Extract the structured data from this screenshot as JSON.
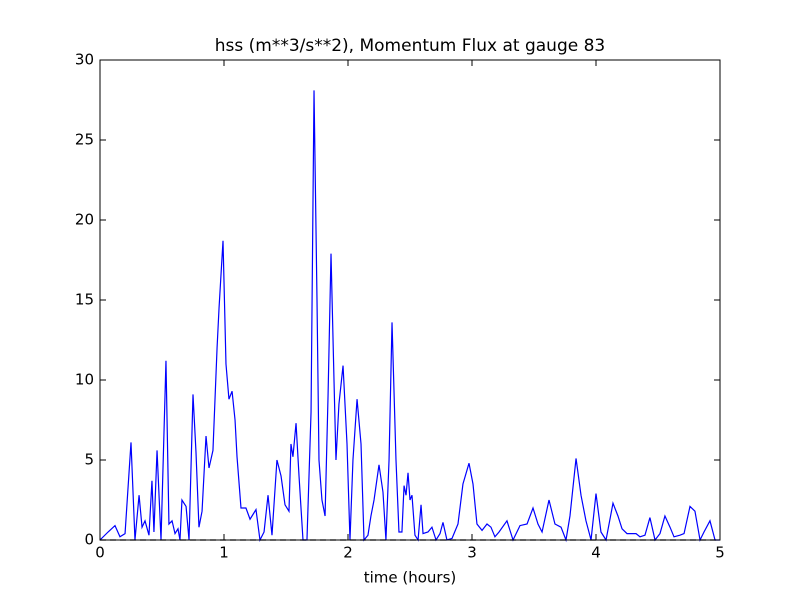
{
  "chart_data": {
    "type": "line",
    "title": "hss (m**3/s**2), Momentum Flux at gauge 83",
    "x_label": "time (hours)",
    "xlim": [
      0,
      5
    ],
    "xticks": [
      0,
      1,
      2,
      3,
      4,
      5
    ],
    "ylim": [
      0,
      30
    ],
    "yticks": [
      0,
      5,
      10,
      15,
      20,
      25,
      30
    ],
    "grid": false,
    "series": [
      {
        "color": "#0000ff",
        "dashed": false,
        "x": [
          0,
          0.065,
          0.121,
          0.161,
          0.202,
          0.25,
          0.282,
          0.315,
          0.339,
          0.363,
          0.395,
          0.419,
          0.435,
          0.46,
          0.492,
          0.532,
          0.556,
          0.581,
          0.605,
          0.629,
          0.645,
          0.661,
          0.694,
          0.718,
          0.75,
          0.774,
          0.798,
          0.823,
          0.855,
          0.879,
          0.911,
          0.944,
          0.96,
          0.992,
          1.016,
          1.04,
          1.065,
          1.089,
          1.105,
          1.137,
          1.177,
          1.21,
          1.258,
          1.29,
          1.323,
          1.355,
          1.387,
          1.427,
          1.46,
          1.492,
          1.524,
          1.54,
          1.556,
          1.581,
          1.605,
          1.637,
          1.669,
          1.702,
          1.726,
          1.75,
          1.766,
          1.79,
          1.815,
          1.839,
          1.863,
          1.887,
          1.903,
          1.927,
          1.96,
          1.992,
          2.016,
          2.04,
          2.073,
          2.105,
          2.129,
          2.161,
          2.185,
          2.21,
          2.25,
          2.282,
          2.306,
          2.331,
          2.355,
          2.387,
          2.411,
          2.435,
          2.452,
          2.468,
          2.484,
          2.5,
          2.516,
          2.54,
          2.565,
          2.589,
          2.605,
          2.645,
          2.677,
          2.71,
          2.742,
          2.766,
          2.798,
          2.839,
          2.887,
          2.927,
          2.976,
          3.008,
          3.04,
          3.081,
          3.121,
          3.153,
          3.185,
          3.218,
          3.282,
          3.331,
          3.387,
          3.444,
          3.492,
          3.532,
          3.565,
          3.621,
          3.669,
          3.718,
          3.758,
          3.79,
          3.839,
          3.879,
          3.919,
          3.96,
          4.0,
          4.04,
          4.081,
          4.137,
          4.177,
          4.21,
          4.25,
          4.323,
          4.355,
          4.395,
          4.435,
          4.476,
          4.516,
          4.556,
          4.597,
          4.629,
          4.677,
          4.71,
          4.758,
          4.798,
          4.839,
          4.871,
          4.919,
          4.96,
          5
        ],
        "values": [
          0,
          0.5,
          0.9,
          0.2,
          0.4,
          6.1,
          0,
          2.8,
          0.8,
          1.2,
          0.3,
          3.7,
          0.5,
          5.6,
          0,
          11.2,
          1,
          1.2,
          0.4,
          0.7,
          0,
          2.5,
          2.1,
          0,
          9.1,
          5.5,
          0.8,
          1.8,
          6.5,
          4.5,
          5.6,
          12,
          14.5,
          18.7,
          11,
          8.8,
          9.3,
          7.5,
          5.2,
          2,
          2,
          1.3,
          1.9,
          0,
          0.5,
          2.8,
          0.3,
          5,
          4,
          2.2,
          1.8,
          6,
          5.2,
          7.3,
          4,
          0,
          0,
          8,
          28.1,
          15,
          5,
          2.5,
          1.5,
          9,
          17.9,
          10,
          5,
          8.5,
          10.9,
          6,
          0,
          5,
          8.8,
          6,
          0,
          0.3,
          1.5,
          2.5,
          4.7,
          3,
          0,
          5,
          13.6,
          5,
          0.5,
          0.5,
          3.4,
          2.8,
          4.2,
          2.5,
          2.8,
          0.3,
          0,
          2.2,
          0.4,
          0.5,
          0.8,
          0,
          0.4,
          1.1,
          0,
          0.1,
          1,
          3.5,
          4.8,
          3.5,
          1,
          0.6,
          1,
          0.8,
          0.2,
          0.5,
          1.2,
          0,
          0.9,
          1,
          2,
          1,
          0.5,
          2.5,
          1,
          0.8,
          0,
          1.5,
          5.1,
          2.8,
          1.2,
          0,
          2.9,
          0.5,
          0,
          2.3,
          1.5,
          0.7,
          0.4,
          0.4,
          0.2,
          0.3,
          1.4,
          0,
          0.4,
          1.5,
          0.8,
          0.2,
          0.3,
          0.4,
          2.1,
          1.8,
          0,
          0.5,
          1.2,
          0,
          0
        ]
      },
      {
        "color": "#000000",
        "dashed": true,
        "x": [
          0,
          5
        ],
        "values": [
          0,
          0
        ]
      }
    ]
  }
}
